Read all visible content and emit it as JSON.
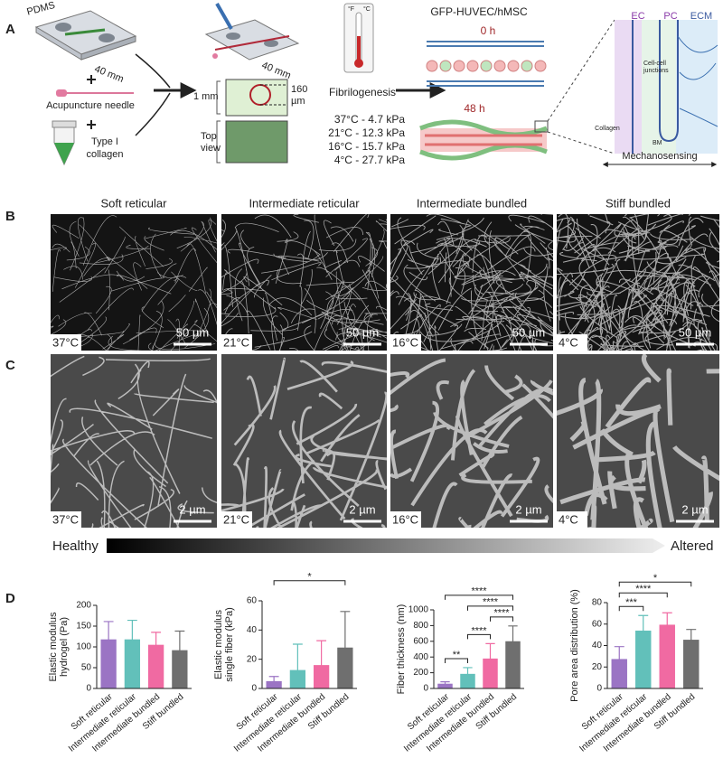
{
  "panel_labels": [
    "A",
    "B",
    "C",
    "D"
  ],
  "panel_a": {
    "pdms": "PDMS",
    "chip_size": "40 mm",
    "needle": "Acupuncture needle",
    "collagen": [
      "Type I",
      "collagen"
    ],
    "height": "1 mm",
    "diameter": [
      "160",
      "µm"
    ],
    "top_view": [
      "Top",
      "view"
    ],
    "thermo_f": "°F",
    "thermo_c": "°C",
    "fibrilogenesis": "Fibrilogenesis",
    "conditions": [
      "37°C -  4.7 kPa",
      "21°C - 12.3 kPa",
      "16°C - 15.7 kPa",
      "4°C - 27.7 kPa"
    ],
    "cells": "GFP-HUVEC/hMSC",
    "t0": "0 h",
    "t48": "48 h",
    "ec": "EC",
    "pc": "PC",
    "ecm": "ECM",
    "junctions": [
      "Cell-cell",
      "junctions"
    ],
    "collagen_label": "Collagen",
    "bm": "BM",
    "mechanosensing": "Mechanosensing"
  },
  "panel_b": {
    "titles": [
      "Soft reticular",
      "Intermediate  reticular",
      "Intermediate  bundled",
      "Stiff bundled"
    ],
    "temperatures": [
      "37°C",
      "21°C",
      "16°C",
      "4°C"
    ],
    "scale": "50 µm"
  },
  "panel_c": {
    "temperatures": [
      "37°C",
      "21°C",
      "16°C",
      "4°C"
    ],
    "scale": "2 µm"
  },
  "gradient": {
    "start": "Healthy",
    "end": "Altered"
  },
  "chart_data": [
    {
      "type": "bar",
      "ylabel": [
        "Elastic modulus",
        "hydrogel (Pa)"
      ],
      "categories": [
        "Soft reticular",
        "Intermediate reticular",
        "Intermediate bundled",
        "Stiff bundled"
      ],
      "values": [
        117,
        117,
        104,
        91
      ],
      "errors": [
        44,
        47,
        31,
        47
      ],
      "colors": [
        "#9b74c4",
        "#62c0ba",
        "#f06aa2",
        "#6f6f6f"
      ],
      "ylim": [
        0,
        200
      ],
      "yticks": [
        0,
        50,
        100,
        150,
        200
      ],
      "significance": []
    },
    {
      "type": "bar",
      "ylabel": [
        "Elastic modulus",
        "single fiber (kPa)"
      ],
      "categories": [
        "Soft reticular",
        "Intermediate reticular",
        "Intermediate bundled",
        "Stiff bundled"
      ],
      "values": [
        4.7,
        12.3,
        15.7,
        27.7
      ],
      "errors": [
        3.5,
        18,
        17,
        25
      ],
      "colors": [
        "#9b74c4",
        "#62c0ba",
        "#f06aa2",
        "#6f6f6f"
      ],
      "ylim": [
        0,
        60
      ],
      "yticks": [
        0,
        20,
        40,
        60
      ],
      "significance": [
        {
          "from": "Soft reticular",
          "to": "Stiff bundled",
          "label": "*"
        }
      ]
    },
    {
      "type": "bar",
      "ylabel": [
        "Fiber thickness (nm)"
      ],
      "categories": [
        "Soft reticular",
        "Intermediate reticular",
        "Intermediate bundled",
        "Stiff bundled"
      ],
      "values": [
        55,
        180,
        375,
        595
      ],
      "errors": [
        30,
        85,
        195,
        200
      ],
      "colors": [
        "#9b74c4",
        "#62c0ba",
        "#f06aa2",
        "#6f6f6f"
      ],
      "ylim": [
        0,
        1000
      ],
      "yticks": [
        0,
        200,
        400,
        600,
        800,
        1000
      ],
      "significance": [
        {
          "from": "Soft reticular",
          "to": "Intermediate reticular",
          "label": "**"
        },
        {
          "from": "Intermediate reticular",
          "to": "Intermediate bundled",
          "label": "****"
        },
        {
          "from": "Intermediate bundled",
          "to": "Stiff bundled",
          "label": "****"
        },
        {
          "from": "Intermediate reticular",
          "to": "Stiff bundled",
          "label": "****"
        },
        {
          "from": "Soft reticular",
          "to": "Stiff bundled",
          "label": "****"
        }
      ]
    },
    {
      "type": "bar",
      "ylabel": [
        "Pore area distribution (%)"
      ],
      "categories": [
        "Soft reticular",
        "Intermediate reticular",
        "Intermediate bundled",
        "Stiff bundled"
      ],
      "values": [
        27,
        53.5,
        59,
        45
      ],
      "errors": [
        12,
        14.5,
        11.5,
        10
      ],
      "colors": [
        "#9b74c4",
        "#62c0ba",
        "#f06aa2",
        "#6f6f6f"
      ],
      "ylim": [
        0,
        80
      ],
      "yticks": [
        0,
        20,
        40,
        60,
        80
      ],
      "significance": [
        {
          "from": "Soft reticular",
          "to": "Intermediate reticular",
          "label": "***"
        },
        {
          "from": "Soft reticular",
          "to": "Intermediate bundled",
          "label": "****"
        },
        {
          "from": "Soft reticular",
          "to": "Stiff bundled",
          "label": "*"
        }
      ]
    }
  ]
}
